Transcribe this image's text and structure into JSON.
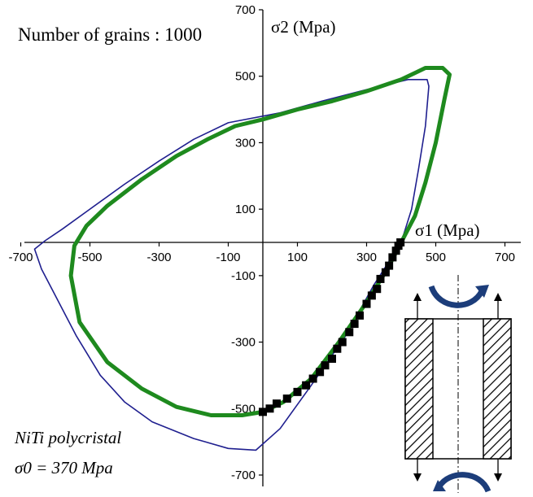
{
  "chart_data": {
    "type": "line",
    "annotation": "Number of grains : 1000",
    "xlabel": "σ1 (Mpa)",
    "ylabel": "σ2 (Mpa)",
    "material_note_line1": "NiTi polycristal",
    "material_note_line2": "σ0 = 370 Mpa",
    "xlim": [
      -700,
      700
    ],
    "ylim": [
      -700,
      700
    ],
    "x_ticks": [
      -700,
      -500,
      -300,
      -100,
      100,
      300,
      500,
      700
    ],
    "y_ticks": [
      -700,
      -500,
      -300,
      -100,
      100,
      300,
      500,
      700
    ],
    "x_tick_labels": [
      "-700",
      "-500",
      "-300",
      "-100",
      "100",
      "300",
      "500",
      "700"
    ],
    "y_tick_labels": [
      "-700",
      "-500",
      "-300",
      "-100",
      "100",
      "300",
      "500",
      "700"
    ],
    "series": [
      {
        "color": "#1f1f8f",
        "style": "thin-line",
        "points": [
          [
            -100,
            360
          ],
          [
            -200,
            310
          ],
          [
            -300,
            245
          ],
          [
            -400,
            175
          ],
          [
            -500,
            100
          ],
          [
            -580,
            40
          ],
          [
            -630,
            5
          ],
          [
            -660,
            -20
          ],
          [
            -640,
            -80
          ],
          [
            -600,
            -160
          ],
          [
            -540,
            -280
          ],
          [
            -470,
            -400
          ],
          [
            -400,
            -480
          ],
          [
            -320,
            -540
          ],
          [
            -200,
            -590
          ],
          [
            -100,
            -620
          ],
          [
            -20,
            -625
          ],
          [
            50,
            -560
          ],
          [
            140,
            -430
          ],
          [
            240,
            -280
          ],
          [
            320,
            -130
          ],
          [
            400,
            0
          ],
          [
            430,
            100
          ],
          [
            450,
            220
          ],
          [
            470,
            350
          ],
          [
            480,
            470
          ],
          [
            475,
            490
          ],
          [
            420,
            490
          ],
          [
            300,
            460
          ],
          [
            170,
            425
          ],
          [
            50,
            390
          ],
          [
            -100,
            360
          ]
        ]
      },
      {
        "color": "#1e8a1e",
        "style": "thick-line",
        "points": [
          [
            0,
            370
          ],
          [
            100,
            400
          ],
          [
            200,
            425
          ],
          [
            300,
            455
          ],
          [
            400,
            490
          ],
          [
            470,
            525
          ],
          [
            520,
            525
          ],
          [
            540,
            505
          ],
          [
            525,
            430
          ],
          [
            500,
            300
          ],
          [
            470,
            180
          ],
          [
            440,
            80
          ],
          [
            400,
            0
          ],
          [
            360,
            -80
          ],
          [
            300,
            -180
          ],
          [
            220,
            -300
          ],
          [
            140,
            -410
          ],
          [
            60,
            -480
          ],
          [
            0,
            -510
          ],
          [
            -60,
            -520
          ],
          [
            -150,
            -520
          ],
          [
            -250,
            -495
          ],
          [
            -350,
            -440
          ],
          [
            -450,
            -360
          ],
          [
            -530,
            -240
          ],
          [
            -555,
            -100
          ],
          [
            -545,
            -10
          ],
          [
            -510,
            50
          ],
          [
            -450,
            110
          ],
          [
            -350,
            190
          ],
          [
            -250,
            260
          ],
          [
            -160,
            310
          ],
          [
            -80,
            350
          ],
          [
            0,
            370
          ]
        ]
      },
      {
        "color": "#000000",
        "style": "square-markers",
        "points": [
          [
            0,
            -510
          ],
          [
            20,
            -500
          ],
          [
            40,
            -485
          ],
          [
            70,
            -470
          ],
          [
            100,
            -450
          ],
          [
            125,
            -430
          ],
          [
            145,
            -410
          ],
          [
            165,
            -390
          ],
          [
            180,
            -370
          ],
          [
            200,
            -350
          ],
          [
            215,
            -320
          ],
          [
            230,
            -300
          ],
          [
            250,
            -270
          ],
          [
            265,
            -245
          ],
          [
            280,
            -220
          ],
          [
            300,
            -185
          ],
          [
            315,
            -160
          ],
          [
            330,
            -140
          ],
          [
            340,
            -110
          ],
          [
            355,
            -90
          ],
          [
            365,
            -70
          ],
          [
            375,
            -45
          ],
          [
            385,
            -25
          ],
          [
            392,
            -10
          ],
          [
            398,
            0
          ]
        ]
      }
    ]
  },
  "inset": {
    "icon": "tube-under-tension-and-torsion-icon"
  }
}
